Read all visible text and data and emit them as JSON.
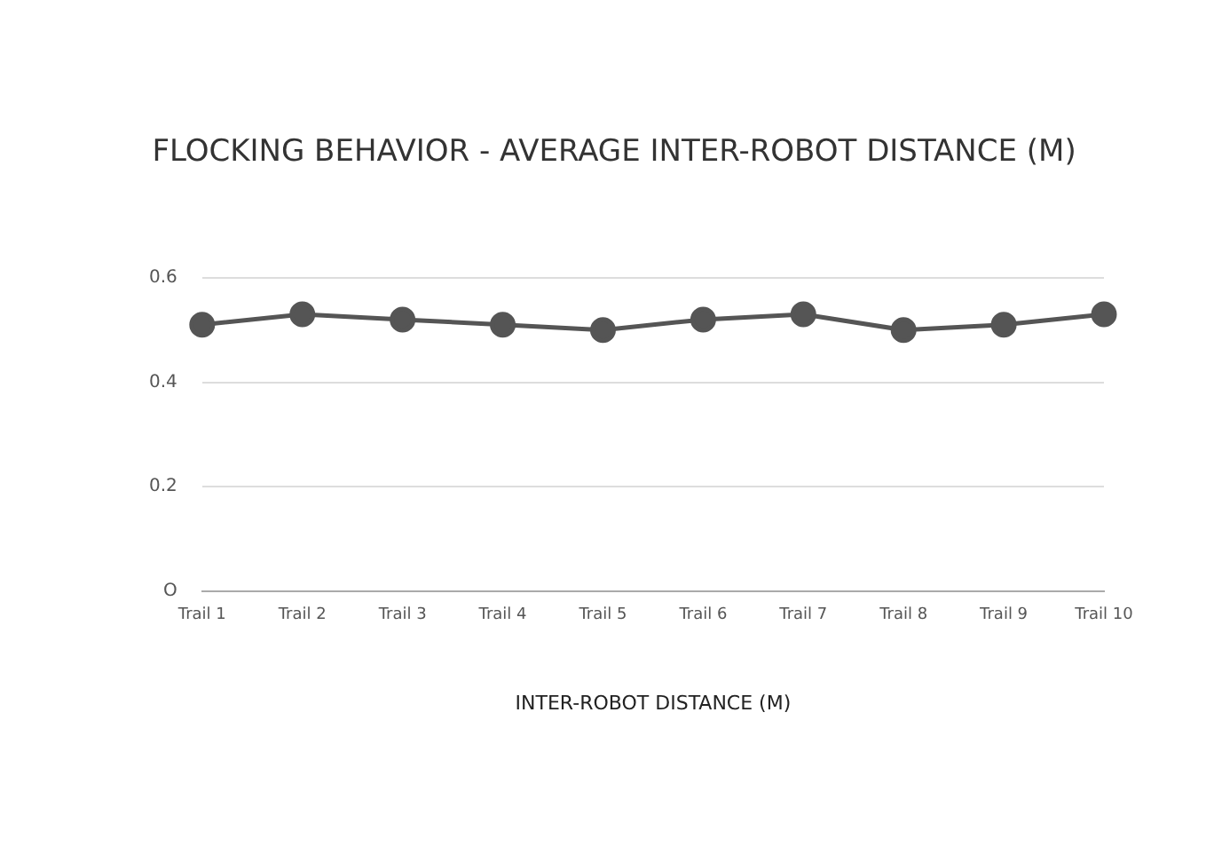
{
  "chart_data": {
    "type": "line",
    "title": "FLOCKING BEHAVIOR - AVERAGE INTER-ROBOT DISTANCE (M)",
    "xlabel": "INTER-ROBOT DISTANCE (M)",
    "categories": [
      "Trail 1",
      "Trail 2",
      "Trail 3",
      "Trail 4",
      "Trail 5",
      "Trail 6",
      "Trail 7",
      "Trail 8",
      "Trail 9",
      "Trail 10"
    ],
    "series": [
      {
        "color": "#555555",
        "values": [
          0.51,
          0.53,
          0.52,
          0.51,
          0.5,
          0.52,
          0.53,
          0.5,
          0.51,
          0.53
        ]
      }
    ],
    "ylim": [
      0,
      0.6
    ],
    "yticks": [
      {
        "value": 0,
        "label": "O"
      },
      {
        "value": 0.2,
        "label": "0.2"
      },
      {
        "value": 0.4,
        "label": "0.4"
      },
      {
        "value": 0.6,
        "label": "0.6"
      }
    ],
    "grid": "y",
    "legend": false,
    "marker": "circle",
    "line_style": "solid"
  }
}
